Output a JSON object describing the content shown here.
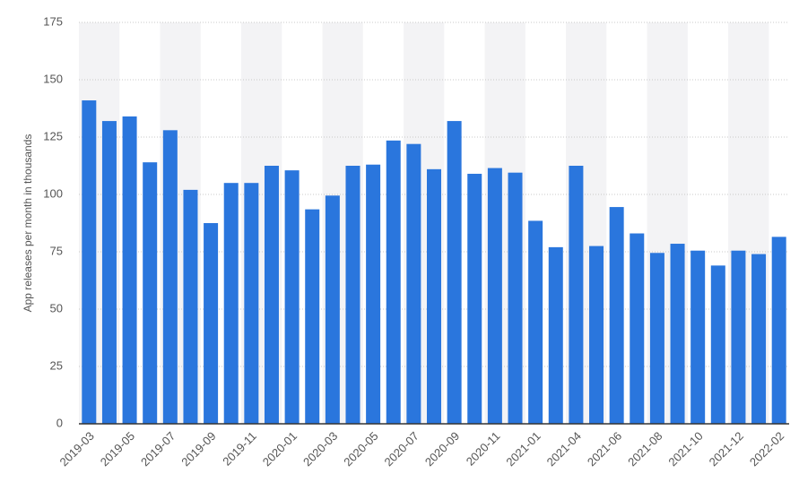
{
  "chart_data": {
    "type": "bar",
    "y_label": "App releases per month in thousands",
    "categories": [
      "2019-03",
      null,
      "2019-05",
      null,
      "2019-07",
      null,
      "2019-09",
      null,
      "2019-11",
      null,
      "2020-01",
      null,
      "2020-03",
      null,
      "2020-05",
      null,
      "2020-07",
      null,
      "2020-09",
      null,
      "2020-11",
      null,
      "2021-01",
      null,
      "2021-04",
      null,
      "2021-06",
      null,
      "2021-08",
      null,
      "2021-10",
      null,
      "2021-12",
      null,
      "2022-02"
    ],
    "values": [
      141,
      132,
      134,
      114,
      128,
      102,
      87.5,
      105,
      105,
      112.5,
      110.5,
      93.5,
      99.5,
      112.5,
      113,
      123.5,
      122,
      111,
      132,
      109,
      111.5,
      109.5,
      88.5,
      77,
      112.5,
      77.5,
      94.5,
      83,
      74.5,
      78.5,
      75.5,
      69,
      75.5,
      74,
      81.5
    ],
    "color": "#2a76dd",
    "ylim": [
      0,
      175
    ],
    "yticks": [
      0,
      25,
      50,
      75,
      100,
      125,
      150,
      175
    ],
    "grid": true
  }
}
